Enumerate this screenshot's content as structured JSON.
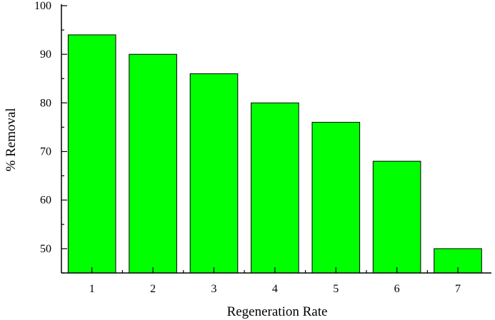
{
  "chart_data": {
    "type": "bar",
    "categories": [
      "1",
      "2",
      "3",
      "4",
      "5",
      "6",
      "7"
    ],
    "values": [
      94,
      90,
      86,
      80,
      76,
      68,
      50
    ],
    "xlabel": "Regeneration Rate",
    "ylabel": "% Removal",
    "ylim": [
      45,
      100
    ],
    "yticks": [
      50,
      60,
      70,
      80,
      90,
      100
    ],
    "grid": false,
    "bar_color": "#00ff00",
    "bar_edge_color": "#000000"
  }
}
